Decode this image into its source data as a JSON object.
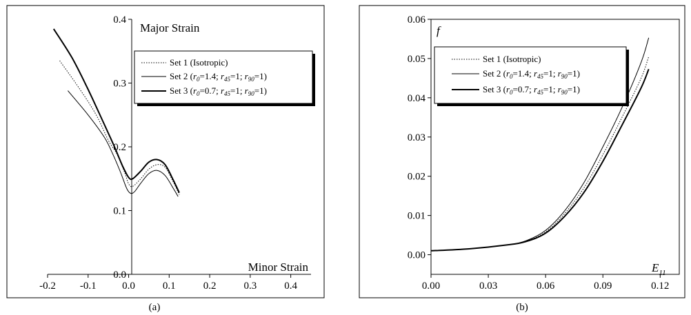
{
  "chart_data": [
    {
      "type": "line",
      "caption": "(a)",
      "ylabel": "Major Strain",
      "xlabel": "Minor Strain",
      "xlim": [
        -0.2,
        0.45
      ],
      "ylim": [
        0.0,
        0.4
      ],
      "xticks": [
        "-0.2",
        "-0.1",
        "0.0",
        "0.1",
        "0.2",
        "0.3",
        "0.4"
      ],
      "xtick_values": [
        -0.2,
        -0.1,
        0.0,
        0.1,
        0.2,
        0.3,
        0.4
      ],
      "yticks": [
        "0.0",
        "0.1",
        "0.2",
        "0.3",
        "0.4"
      ],
      "ytick_values": [
        0.0,
        0.1,
        0.2,
        0.3,
        0.4
      ],
      "grid": false,
      "legend_position": "top-right",
      "legend": [
        {
          "text": "Set 1 (Isotropic)",
          "style": "dotted"
        },
        {
          "text": "Set 2 (r0=1.4; r45=1; r90=1)",
          "style": "thin"
        },
        {
          "text": "Set 3 (r0=0.7; r45=1; r90=1)",
          "style": "thick"
        }
      ],
      "series": [
        {
          "name": "Set 1 (Isotropic)",
          "style": "dotted",
          "x": [
            -0.17,
            -0.12,
            -0.08,
            -0.05,
            -0.03,
            -0.01,
            0.0,
            0.01,
            0.03,
            0.05,
            0.07,
            0.09,
            0.11,
            0.125
          ],
          "y": [
            0.335,
            0.29,
            0.25,
            0.21,
            0.19,
            0.16,
            0.142,
            0.138,
            0.15,
            0.165,
            0.172,
            0.168,
            0.145,
            0.125
          ]
        },
        {
          "name": "Set 2 (r0=1.4; r45=1; r90=1)",
          "style": "thin",
          "x": [
            -0.15,
            -0.1,
            -0.06,
            -0.04,
            -0.02,
            -0.005,
            0.005,
            0.015,
            0.03,
            0.05,
            0.07,
            0.09,
            0.11,
            0.122
          ],
          "y": [
            0.288,
            0.25,
            0.215,
            0.19,
            0.16,
            0.135,
            0.127,
            0.13,
            0.143,
            0.158,
            0.163,
            0.155,
            0.135,
            0.122
          ]
        },
        {
          "name": "Set 3 (r0=0.7; r45=1; r90=1)",
          "style": "thick",
          "x": [
            -0.185,
            -0.14,
            -0.1,
            -0.06,
            -0.035,
            -0.015,
            0.0,
            0.01,
            0.03,
            0.05,
            0.07,
            0.09,
            0.11,
            0.125
          ],
          "y": [
            0.385,
            0.34,
            0.29,
            0.235,
            0.2,
            0.17,
            0.152,
            0.15,
            0.162,
            0.176,
            0.18,
            0.172,
            0.148,
            0.128
          ]
        }
      ]
    },
    {
      "type": "line",
      "caption": "(b)",
      "ylabel": "f",
      "xlabel": "E11",
      "xlim": [
        0.0,
        0.13
      ],
      "ylim": [
        -0.005,
        0.06
      ],
      "xticks": [
        "0.00",
        "0.03",
        "0.06",
        "0.09",
        "0.12"
      ],
      "xtick_values": [
        0.0,
        0.03,
        0.06,
        0.09,
        0.12
      ],
      "yticks": [
        "0.00",
        "0.01",
        "0.02",
        "0.03",
        "0.04",
        "0.05",
        "0.06"
      ],
      "ytick_values": [
        0.0,
        0.01,
        0.02,
        0.03,
        0.04,
        0.05,
        0.06
      ],
      "grid": false,
      "legend_position": "top-left",
      "legend": [
        {
          "text": "Set 1 (Isotropic)",
          "style": "dotted"
        },
        {
          "text": "Set 2 (r0=1.4; r45=1; r90=1)",
          "style": "thin"
        },
        {
          "text": "Set 3 (r0=0.7; r45=1; r90=1)",
          "style": "thick"
        }
      ],
      "series": [
        {
          "name": "Set 1 (Isotropic)",
          "style": "dotted",
          "x": [
            0.0,
            0.02,
            0.04,
            0.05,
            0.06,
            0.07,
            0.08,
            0.09,
            0.1,
            0.11,
            0.114
          ],
          "y": [
            0.001,
            0.0015,
            0.0025,
            0.0035,
            0.0058,
            0.0105,
            0.017,
            0.0255,
            0.035,
            0.045,
            0.0505
          ]
        },
        {
          "name": "Set 2 (r0=1.4; r45=1; r90=1)",
          "style": "thin",
          "x": [
            0.0,
            0.02,
            0.04,
            0.05,
            0.06,
            0.07,
            0.08,
            0.09,
            0.1,
            0.11,
            0.114
          ],
          "y": [
            0.001,
            0.0015,
            0.0025,
            0.0036,
            0.0062,
            0.0112,
            0.0183,
            0.0275,
            0.0375,
            0.049,
            0.0553
          ]
        },
        {
          "name": "Set 3 (r0=0.7; r45=1; r90=1)",
          "style": "thick",
          "x": [
            0.0,
            0.02,
            0.04,
            0.05,
            0.06,
            0.07,
            0.08,
            0.09,
            0.1,
            0.11,
            0.114
          ],
          "y": [
            0.001,
            0.0015,
            0.0025,
            0.0034,
            0.0055,
            0.0098,
            0.0158,
            0.0238,
            0.033,
            0.0425,
            0.0473
          ]
        }
      ]
    }
  ]
}
